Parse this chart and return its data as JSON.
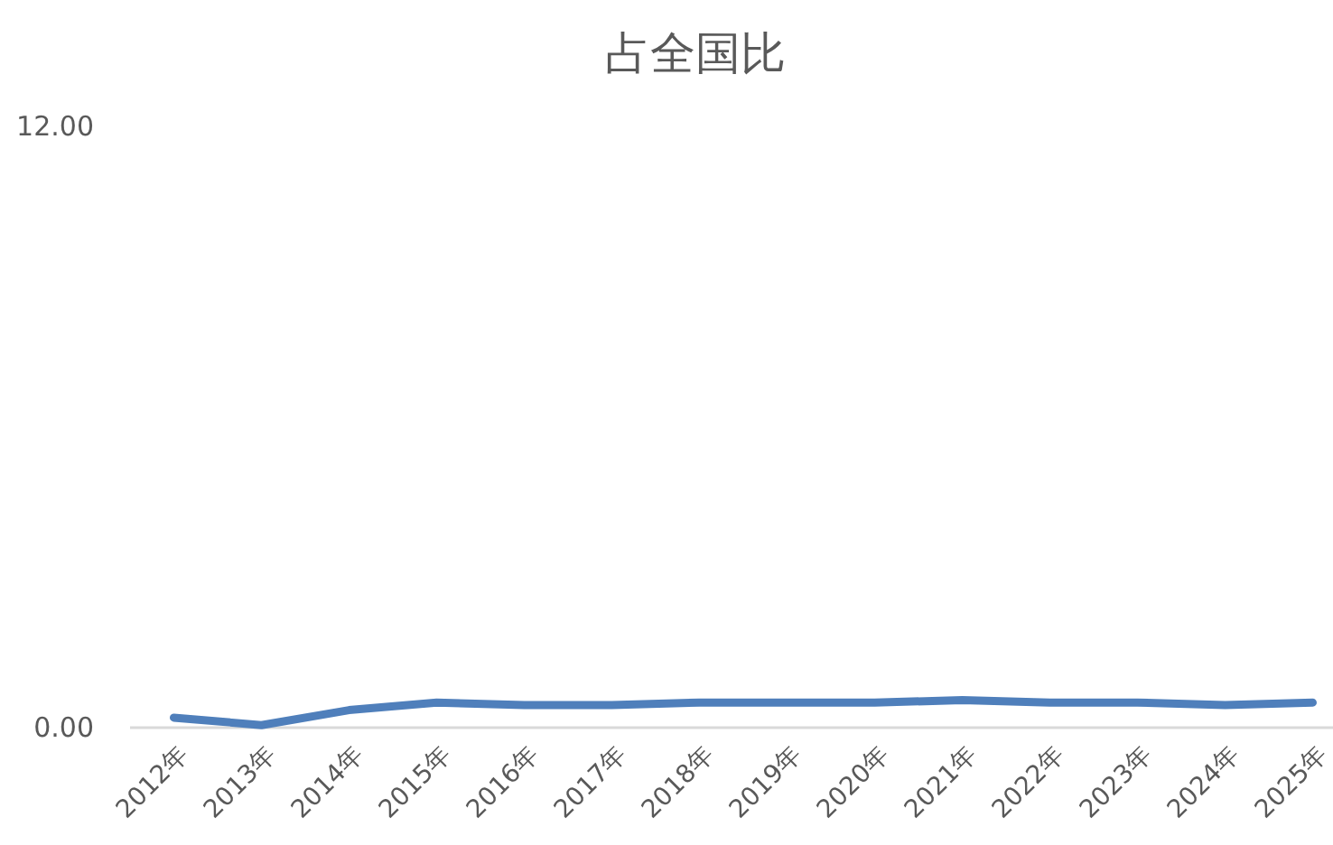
{
  "chart_data": {
    "type": "line",
    "title": "占全国比",
    "categories": [
      "2012年",
      "2013年",
      "2014年",
      "2015年",
      "2016年",
      "2017年",
      "2018年",
      "2019年",
      "2020年",
      "2021年",
      "2022年",
      "2023年",
      "2024年",
      "2025年"
    ],
    "values": [
      0.2,
      0.05,
      0.35,
      0.5,
      0.45,
      0.45,
      0.5,
      0.5,
      0.5,
      0.55,
      0.5,
      0.5,
      0.45,
      0.5
    ],
    "color": "#4f7fbb",
    "ylim": [
      0,
      12
    ],
    "yticks": [
      {
        "value": 0,
        "label": "0.00"
      },
      {
        "value": 12,
        "label": "12.00"
      }
    ]
  }
}
